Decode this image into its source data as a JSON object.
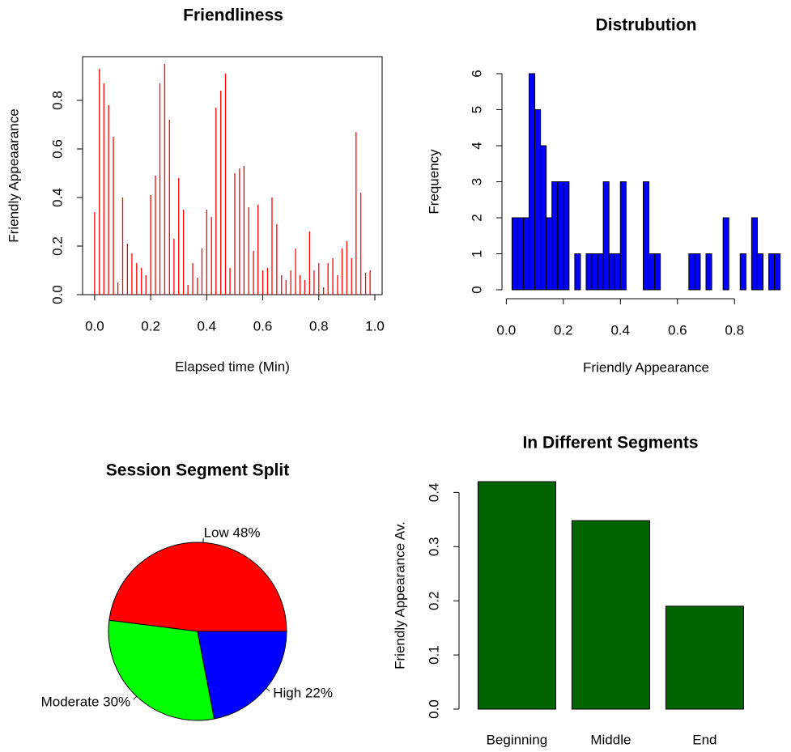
{
  "chart_data": [
    {
      "type": "spike",
      "title": "Friendliness",
      "xlabel": "Elapsed time (Min)",
      "ylabel": "Friendly Appeaarance",
      "color": "#ff0000",
      "x": [
        0,
        0.017,
        0.033,
        0.05,
        0.067,
        0.083,
        0.1,
        0.117,
        0.133,
        0.15,
        0.167,
        0.183,
        0.2,
        0.217,
        0.233,
        0.25,
        0.267,
        0.283,
        0.3,
        0.317,
        0.333,
        0.35,
        0.367,
        0.383,
        0.4,
        0.417,
        0.433,
        0.45,
        0.467,
        0.483,
        0.5,
        0.517,
        0.533,
        0.55,
        0.567,
        0.583,
        0.6,
        0.617,
        0.633,
        0.65,
        0.667,
        0.683,
        0.7,
        0.717,
        0.733,
        0.75,
        0.767,
        0.783,
        0.8,
        0.817,
        0.833,
        0.85,
        0.867,
        0.883,
        0.9,
        0.917,
        0.933,
        0.95,
        0.967,
        0.983
      ],
      "values": [
        0.34,
        0.93,
        0.87,
        0.78,
        0.65,
        0.05,
        0.4,
        0.21,
        0.17,
        0.13,
        0.11,
        0.08,
        0.41,
        0.49,
        0.87,
        0.95,
        0.72,
        0.23,
        0.48,
        0.35,
        0.04,
        0.13,
        0.07,
        0.19,
        0.35,
        0.32,
        0.77,
        0.84,
        0.91,
        0.11,
        0.5,
        0.52,
        0.53,
        0.36,
        0.18,
        0.37,
        0.1,
        0.11,
        0.4,
        0.29,
        0.08,
        0.06,
        0.1,
        0.19,
        0.08,
        0.06,
        0.26,
        0.1,
        0.13,
        0.03,
        0.13,
        0.15,
        0.08,
        0.19,
        0.22,
        0.15,
        0.67,
        0.42,
        0.09,
        0.1
      ],
      "xlim": [
        -0.043,
        1.026
      ],
      "ylim": [
        0,
        0.98
      ],
      "xticks": [
        {
          "value": 0,
          "label": "0.0"
        },
        0.2,
        0.4,
        0.6,
        0.8,
        {
          "value": 1,
          "label": "1.0"
        }
      ],
      "yticks": [
        {
          "value": 0,
          "label": "0.0"
        },
        0.2,
        0.4,
        0.6,
        0.8
      ]
    },
    {
      "type": "histogram",
      "title": "Distrubution",
      "xlabel": "Friendly Appearance",
      "ylabel": "Frequency",
      "color": "#0000ff",
      "bins": [
        0.02,
        0.04,
        0.06,
        0.08,
        0.1,
        0.12,
        0.14,
        0.16,
        0.18,
        0.2,
        0.22,
        0.24,
        0.26,
        0.28,
        0.3,
        0.32,
        0.34,
        0.36,
        0.38,
        0.4,
        0.42,
        0.44,
        0.46,
        0.48,
        0.5,
        0.52,
        0.54,
        0.56,
        0.58,
        0.6,
        0.62,
        0.64,
        0.66,
        0.68,
        0.7,
        0.72,
        0.74,
        0.76,
        0.78,
        0.8,
        0.82,
        0.84,
        0.86,
        0.88,
        0.9,
        0.92,
        0.94,
        0.96
      ],
      "values": [
        2,
        2,
        2,
        6,
        5,
        4,
        2,
        3,
        3,
        3,
        0,
        1,
        0,
        1,
        1,
        1,
        3,
        1,
        1,
        3,
        0,
        0,
        0,
        3,
        1,
        1,
        0,
        0,
        0,
        0,
        0,
        1,
        1,
        0,
        1,
        0,
        0,
        2,
        0,
        0,
        1,
        0,
        2,
        1,
        0,
        1,
        1
      ],
      "xlim": [
        -0.018,
        0.998
      ],
      "ylim": [
        0,
        6
      ],
      "xticks": [
        {
          "value": 0,
          "label": "0.0"
        },
        0.2,
        0.4,
        0.6,
        0.8
      ],
      "yticks": [
        0,
        1,
        2,
        3,
        4,
        5,
        6
      ]
    },
    {
      "type": "pie",
      "title": "Session Segment Split",
      "values": [
        48,
        30,
        22
      ],
      "value_labels": [
        "Low 48%",
        "Moderate 30%",
        "High 22%"
      ],
      "colors": [
        "#ff0000",
        "#00ff00",
        "#0000ff"
      ]
    },
    {
      "type": "bar",
      "title": "In Different Segments",
      "ylabel": "Friendly Appearance Av.",
      "color": "#006400",
      "categories": [
        "Beginning",
        "Middle",
        "End"
      ],
      "values": [
        0.42,
        0.348,
        0.19
      ],
      "ylim": [
        0,
        0.42
      ],
      "yticks": [
        {
          "value": 0,
          "label": "0.0"
        },
        0.1,
        0.2,
        0.3,
        0.4
      ]
    }
  ]
}
